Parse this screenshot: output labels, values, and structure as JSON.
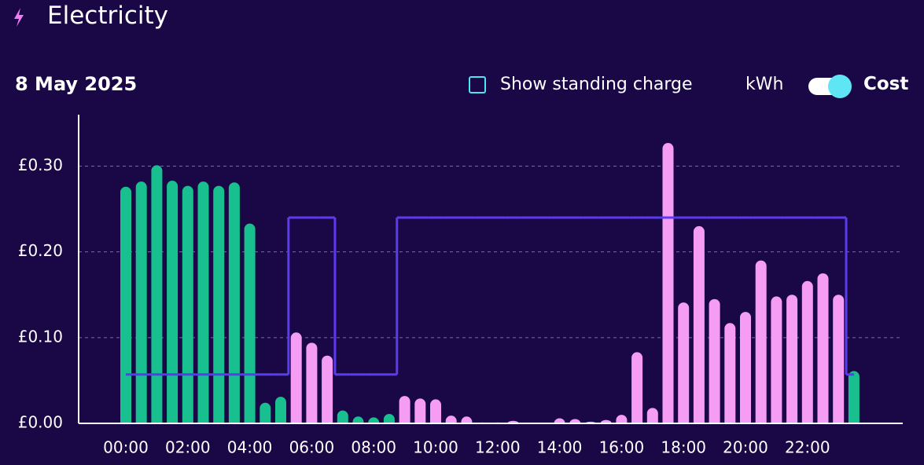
{
  "header": {
    "title": "Electricity",
    "date": "8 May 2025",
    "checkbox_label": "Show standing charge",
    "toggle_left": "kWh",
    "toggle_right": "Cost"
  },
  "chart_data": {
    "type": "bar",
    "categories": [
      "00:00",
      null,
      null,
      null,
      "02:00",
      null,
      null,
      null,
      "04:00",
      null,
      null,
      null,
      "06:00",
      null,
      null,
      null,
      "08:00",
      null,
      null,
      null,
      "10:00",
      null,
      null,
      null,
      "12:00",
      null,
      null,
      null,
      "14:00",
      null,
      null,
      null,
      "16:00",
      null,
      null,
      null,
      "18:00",
      null,
      null,
      null,
      "20:00",
      null,
      null,
      null,
      "22:00",
      null,
      null,
      null
    ],
    "values": [
      0.276,
      0.282,
      0.301,
      0.283,
      0.277,
      0.282,
      0.277,
      0.281,
      0.233,
      0.024,
      0.031,
      0.106,
      0.094,
      0.079,
      0.015,
      0.008,
      0.007,
      0.011,
      0.032,
      0.029,
      0.028,
      0.009,
      0.008,
      0.001,
      0.001,
      0.003,
      0,
      0,
      0.006,
      0.005,
      0.002,
      0.004,
      0.01,
      0.083,
      0.018,
      0.327,
      0.141,
      0.23,
      0.145,
      0.117,
      0.13,
      0.19,
      0.148,
      0.15,
      0.166,
      0.175,
      0.15,
      0.061
    ],
    "colors": [
      "#17c08e",
      "#17c08e",
      "#17c08e",
      "#17c08e",
      "#17c08e",
      "#17c08e",
      "#17c08e",
      "#17c08e",
      "#17c08e",
      "#17c08e",
      "#17c08e",
      "#f59cf5",
      "#f59cf5",
      "#f59cf5",
      "#17c08e",
      "#17c08e",
      "#17c08e",
      "#17c08e",
      "#f59cf5",
      "#f59cf5",
      "#f59cf5",
      "#f59cf5",
      "#f59cf5",
      "#f59cf5",
      "#f59cf5",
      "#f59cf5",
      "#f59cf5",
      "#f59cf5",
      "#f59cf5",
      "#f59cf5",
      "#f59cf5",
      "#f59cf5",
      "#f59cf5",
      "#f59cf5",
      "#f59cf5",
      "#f59cf5",
      "#f59cf5",
      "#f59cf5",
      "#f59cf5",
      "#f59cf5",
      "#f59cf5",
      "#f59cf5",
      "#f59cf5",
      "#f59cf5",
      "#f59cf5",
      "#f59cf5",
      "#f59cf5",
      "#17c08e"
    ],
    "rate_values": [
      0.057,
      0.057,
      0.057,
      0.057,
      0.057,
      0.057,
      0.057,
      0.057,
      0.057,
      0.057,
      0.057,
      0.24,
      0.24,
      0.24,
      0.057,
      0.057,
      0.057,
      0.057,
      0.24,
      0.24,
      0.24,
      0.24,
      0.24,
      0.24,
      0.24,
      0.24,
      0.24,
      0.24,
      0.24,
      0.24,
      0.24,
      0.24,
      0.24,
      0.24,
      0.24,
      0.24,
      0.24,
      0.24,
      0.24,
      0.24,
      0.24,
      0.24,
      0.24,
      0.24,
      0.24,
      0.24,
      0.24,
      0.057
    ],
    "rate_color": "#5a3cf0",
    "ylim": [
      0,
      0.36
    ],
    "yticks": [
      {
        "value": 0,
        "label": "£0.00"
      },
      {
        "value": 0.1,
        "label": "£0.10"
      },
      {
        "value": 0.2,
        "label": "£0.20"
      },
      {
        "value": 0.3,
        "label": "£0.30"
      }
    ],
    "grid": true
  }
}
